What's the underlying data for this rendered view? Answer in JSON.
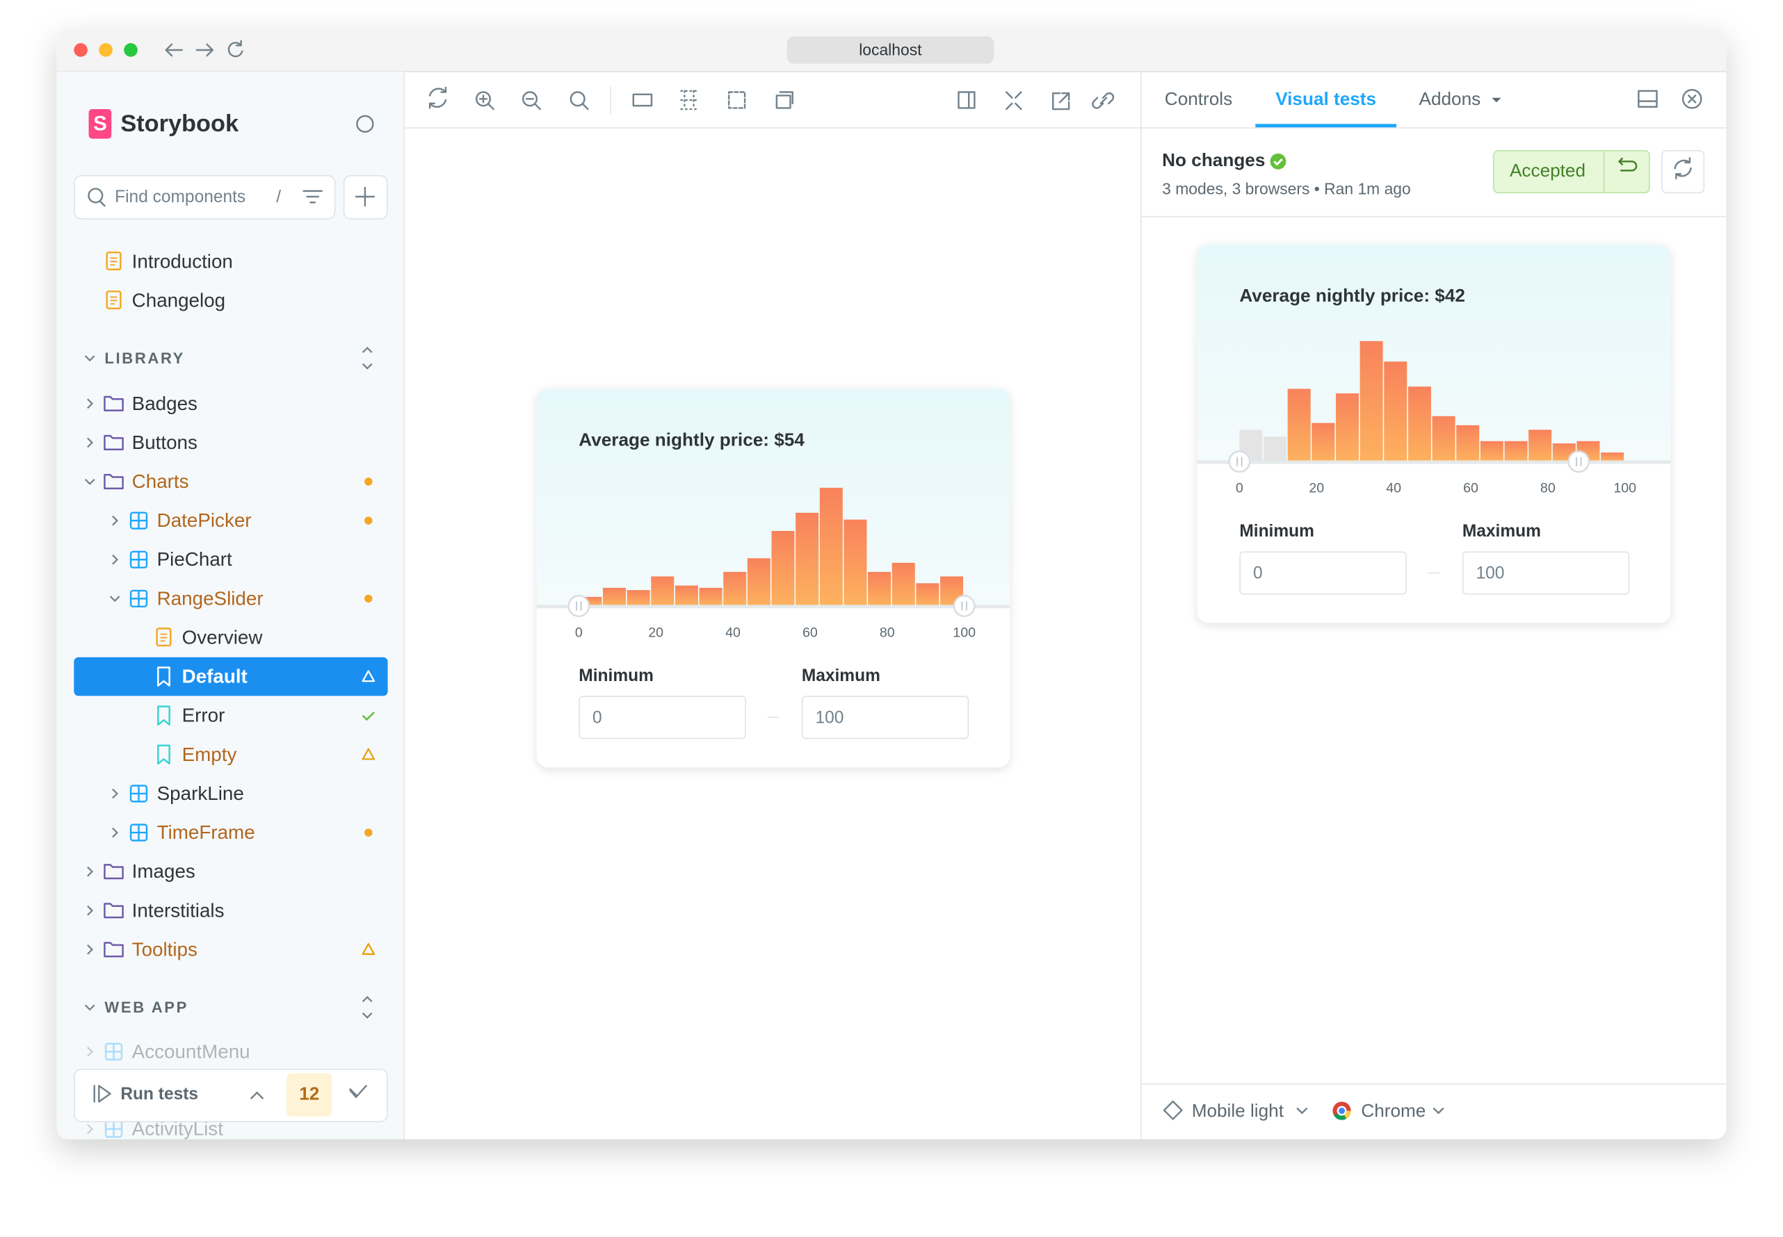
{
  "window": {
    "url": "localhost"
  },
  "sidebar": {
    "brand": "Storybook",
    "search": {
      "placeholder": "Find components",
      "shortcut": "/"
    },
    "top": [
      {
        "label": "Introduction",
        "kind": "doc",
        "depth": 0
      },
      {
        "label": "Changelog",
        "kind": "doc",
        "depth": 0
      }
    ],
    "sections": [
      {
        "title": "LIBRARY",
        "items": [
          {
            "label": "Badges",
            "kind": "folder",
            "depth": 0,
            "expanded": false
          },
          {
            "label": "Buttons",
            "kind": "folder",
            "depth": 0,
            "expanded": false
          },
          {
            "label": "Charts",
            "kind": "folder",
            "depth": 0,
            "expanded": true,
            "status": "changed"
          },
          {
            "label": "DatePicker",
            "kind": "component",
            "depth": 1,
            "expanded": false,
            "status": "changed"
          },
          {
            "label": "PieChart",
            "kind": "component",
            "depth": 1,
            "expanded": false
          },
          {
            "label": "RangeSlider",
            "kind": "component",
            "depth": 1,
            "expanded": true,
            "status": "changed"
          },
          {
            "label": "Overview",
            "kind": "doc",
            "depth": 2
          },
          {
            "label": "Default",
            "kind": "story",
            "depth": 2,
            "status": "warning",
            "selected": true
          },
          {
            "label": "Error",
            "kind": "story",
            "depth": 2,
            "status": "passed"
          },
          {
            "label": "Empty",
            "kind": "story",
            "depth": 2,
            "status": "warning"
          },
          {
            "label": "SparkLine",
            "kind": "component",
            "depth": 1,
            "expanded": false
          },
          {
            "label": "TimeFrame",
            "kind": "component",
            "depth": 1,
            "expanded": false,
            "status": "changed"
          },
          {
            "label": "Images",
            "kind": "folder",
            "depth": 0,
            "expanded": false
          },
          {
            "label": "Interstitials",
            "kind": "folder",
            "depth": 0,
            "expanded": false
          },
          {
            "label": "Tooltips",
            "kind": "folder",
            "depth": 0,
            "expanded": false,
            "status": "warning"
          }
        ]
      },
      {
        "title": "WEB APP",
        "items": [
          {
            "label": "AccountMenu",
            "kind": "component",
            "depth": 0,
            "expanded": false
          },
          {
            "label": "ActivityList",
            "kind": "component",
            "depth": 0,
            "expanded": false
          }
        ]
      }
    ],
    "run_tests": {
      "label": "Run tests",
      "count": 12
    }
  },
  "preview": {
    "title": "Average nightly price: $54",
    "counts": [
      8,
      16,
      14,
      26,
      18,
      16,
      30,
      42,
      66,
      82,
      104,
      76,
      30,
      38,
      20,
      26
    ],
    "muted_count": 0,
    "xlim": [
      0,
      100
    ],
    "xticks": [
      0,
      20,
      40,
      60,
      80,
      100
    ],
    "handles": [
      0,
      100
    ],
    "min_label": "Minimum",
    "max_label": "Maximum",
    "min_value": 0,
    "max_value": 100
  },
  "panel": {
    "tabs": [
      {
        "label": "Controls"
      },
      {
        "label": "Visual tests",
        "active": true
      },
      {
        "label": "Addons",
        "menu": true
      }
    ],
    "status": "No changes",
    "details": "3 modes, 3 browsers • Ran 1m ago",
    "accept_label": "Accepted",
    "mode": "Mobile light",
    "browser": "Chrome",
    "snapshot": {
      "title": "Average nightly price: $42",
      "counts": [
        28,
        22,
        64,
        34,
        60,
        106,
        88,
        66,
        40,
        32,
        18,
        18,
        28,
        16,
        18,
        8
      ],
      "muted_count": 2,
      "xlim": [
        0,
        100
      ],
      "xticks": [
        0,
        20,
        40,
        60,
        80,
        100
      ],
      "handles": [
        0,
        88
      ],
      "min_label": "Minimum",
      "max_label": "Maximum",
      "min_value": 0,
      "max_value": 100
    }
  }
}
